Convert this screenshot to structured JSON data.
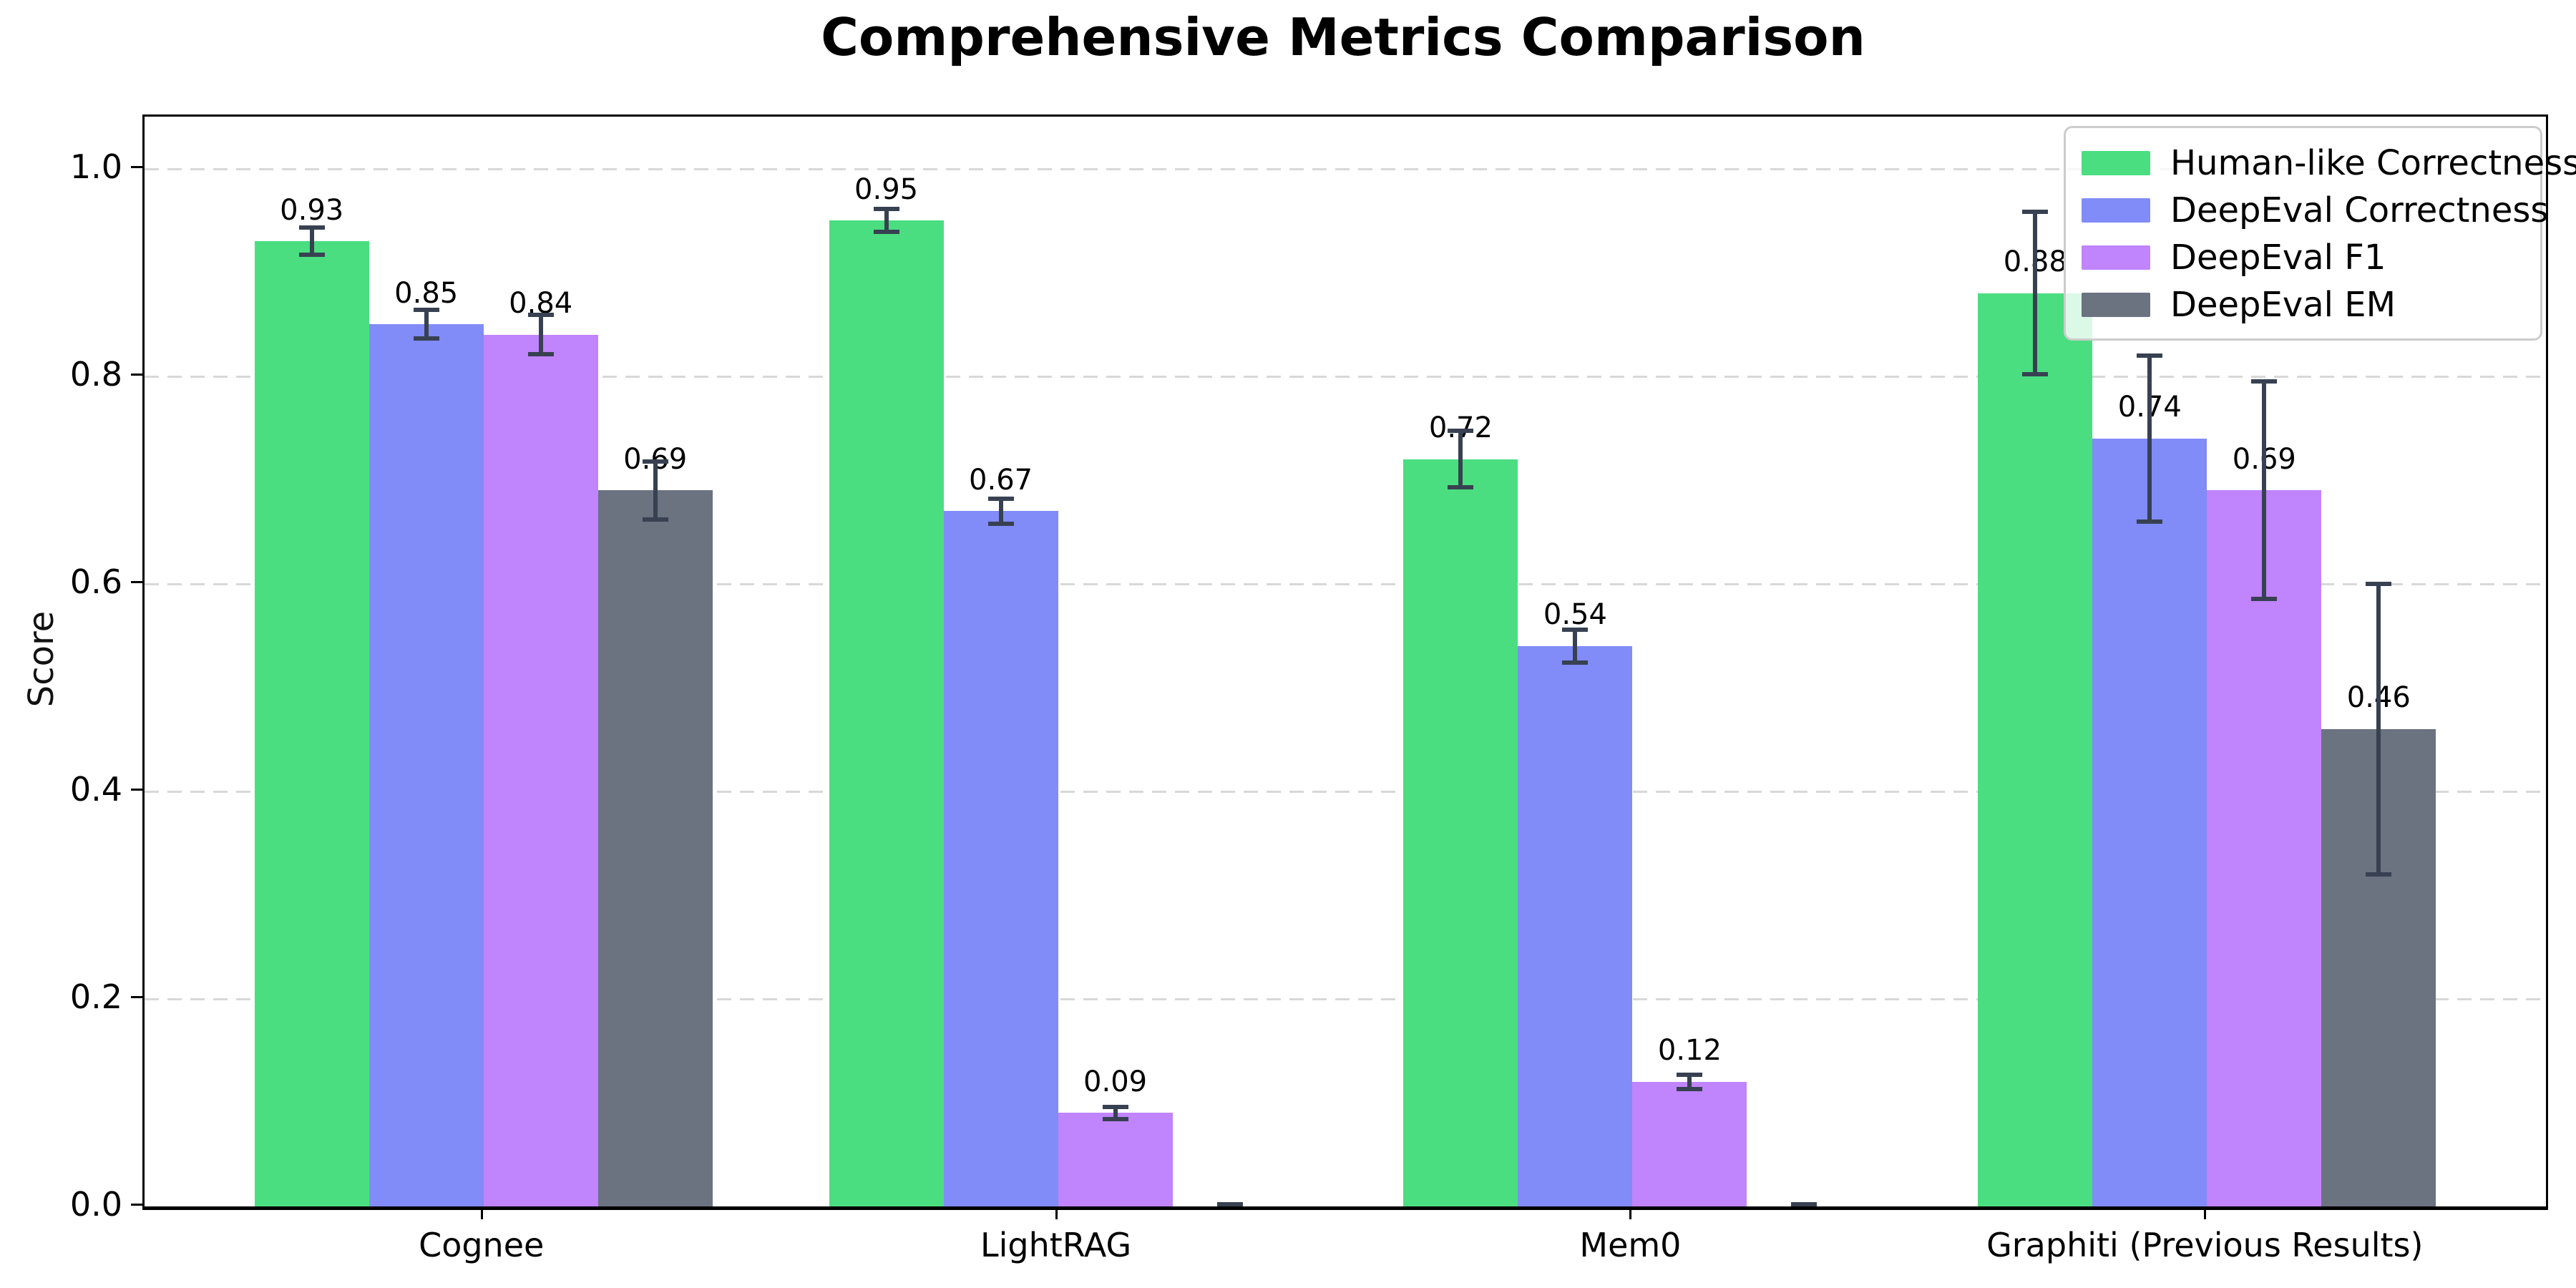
{
  "title": "Comprehensive Metrics Comparison",
  "chart_data": {
    "type": "bar",
    "title": "Comprehensive Metrics Comparison",
    "xlabel": "",
    "ylabel": "Score",
    "categories": [
      "Cognee",
      "LightRAG",
      "Mem0",
      "Graphiti (Previous Results)"
    ],
    "ytick_labels": [
      "0.0",
      "0.2",
      "0.4",
      "0.6",
      "0.8",
      "1.0"
    ],
    "yticks": [
      0.0,
      0.2,
      0.4,
      0.6,
      0.8,
      1.0
    ],
    "ylim": [
      0,
      1.05
    ],
    "grid": "horizontal-dashed",
    "legend_position": "upper-right",
    "error_bars": true,
    "series": [
      {
        "name": "Human-like Correctness",
        "color": "#4ade80",
        "values": [
          0.93,
          0.95,
          0.72,
          0.88
        ],
        "errors": [
          0.013,
          0.011,
          0.027,
          0.078
        ],
        "labels": [
          "0.93",
          "0.95",
          "0.72",
          "0.88"
        ]
      },
      {
        "name": "DeepEval Correctness",
        "color": "#818cf8",
        "values": [
          0.85,
          0.67,
          0.54,
          0.74
        ],
        "errors": [
          0.014,
          0.012,
          0.016,
          0.08
        ],
        "labels": [
          "0.85",
          "0.67",
          "0.54",
          "0.74"
        ]
      },
      {
        "name": "DeepEval F1",
        "color": "#c084fc",
        "values": [
          0.84,
          0.09,
          0.12,
          0.69
        ],
        "errors": [
          0.019,
          0.006,
          0.007,
          0.105
        ],
        "labels": [
          "0.84",
          "0.09",
          "0.12",
          "0.69"
        ]
      },
      {
        "name": "DeepEval EM",
        "color": "#6b7280",
        "values": [
          0.69,
          0.0,
          0.0,
          0.46
        ],
        "errors": [
          0.028,
          0.002,
          0.002,
          0.14
        ],
        "labels": [
          "0.69",
          "",
          "",
          "0.46"
        ]
      }
    ]
  },
  "colors": {
    "errorbar": "#374151",
    "grid": "#d8d8d8",
    "axis": "#000000",
    "legend_border": "#cccccc",
    "background": "#ffffff"
  }
}
